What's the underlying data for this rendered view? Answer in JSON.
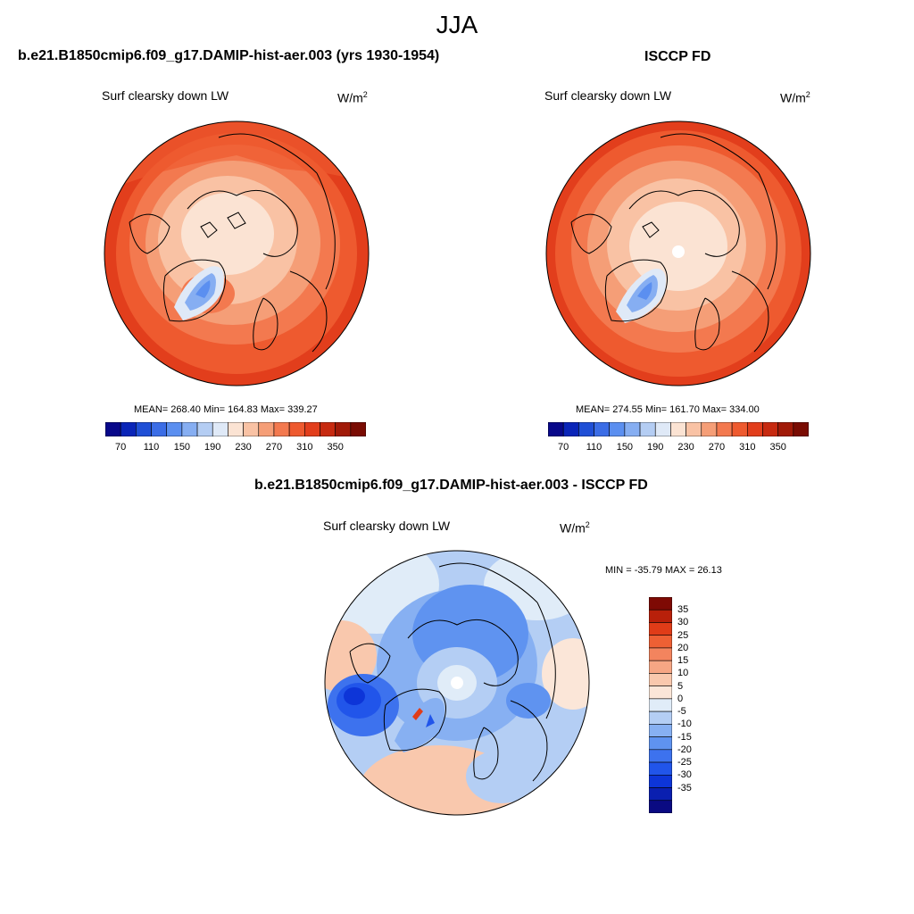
{
  "figure": {
    "title": "JJA"
  },
  "panels": [
    {
      "title": "b.e21.B1850cmip6.f09_g17.DAMIP-hist-aer.003 (yrs 1930-1954)",
      "variable": "Surf clearsky down LW",
      "units_base": "W/m",
      "units_exp": "2",
      "stats": "MEAN= 268.40  Min= 164.83  Max= 339.27"
    },
    {
      "title": "ISCCP FD",
      "variable": "Surf clearsky down LW",
      "units_base": "W/m",
      "units_exp": "2",
      "stats": "MEAN= 274.55  Min= 161.70  Max= 334.00"
    },
    {
      "title": "b.e21.B1850cmip6.f09_g17.DAMIP-hist-aer.003 - ISCCP FD",
      "variable": "Surf clearsky down LW",
      "units_base": "W/m",
      "units_exp": "2",
      "stats": "MIN = -35.79 MAX =  26.13"
    }
  ],
  "colorbar_abs": {
    "colors": [
      "#08088a",
      "#0a25b8",
      "#1f4fd6",
      "#3b6de6",
      "#5b8ff0",
      "#86aef2",
      "#b4cdf3",
      "#dfe9f7",
      "#fbe3d3",
      "#f9c2a4",
      "#f59e77",
      "#f3794f",
      "#ee5a2f",
      "#e23e1c",
      "#c72a10",
      "#a11a08",
      "#7a0c03"
    ],
    "ticks": [
      "70",
      "110",
      "150",
      "190",
      "230",
      "270",
      "310",
      "350"
    ]
  },
  "colorbar_diff": {
    "colors": [
      "#0a0a82",
      "#0a1fb0",
      "#0d35d8",
      "#2155ea",
      "#3d72ee",
      "#5f93f0",
      "#87b0f2",
      "#b4cef4",
      "#e0ecf8",
      "#fbe6d8",
      "#f9c8ad",
      "#f6a684",
      "#f3845e",
      "#ee6034",
      "#e03c18",
      "#b8200a",
      "#7e0a04"
    ],
    "labels": [
      "35",
      "30",
      "25",
      "20",
      "15",
      "10",
      "5",
      "0",
      "-5",
      "-10",
      "-15",
      "-20",
      "-25",
      "-30",
      "-35"
    ]
  },
  "chart_data": [
    {
      "type": "heatmap",
      "title": "b.e21.B1850cmip6.f09_g17.DAMIP-hist-aer.003 (yrs 1930-1954)",
      "projection": "north polar stereographic",
      "variable": "Surf clearsky down LW",
      "units": "W/m2",
      "mean": 268.4,
      "min": 164.83,
      "max": 339.27,
      "color_levels": [
        70,
        350
      ]
    },
    {
      "type": "heatmap",
      "title": "ISCCP FD",
      "projection": "north polar stereographic",
      "variable": "Surf clearsky down LW",
      "units": "W/m2",
      "mean": 274.55,
      "min": 161.7,
      "max": 334.0,
      "color_levels": [
        70,
        350
      ]
    },
    {
      "type": "heatmap",
      "title": "b.e21.B1850cmip6.f09_g17.DAMIP-hist-aer.003 - ISCCP FD",
      "projection": "north polar stereographic",
      "variable": "Surf clearsky down LW",
      "units": "W/m2",
      "min": -35.79,
      "max": 26.13,
      "color_levels": [
        -35,
        35
      ]
    }
  ]
}
